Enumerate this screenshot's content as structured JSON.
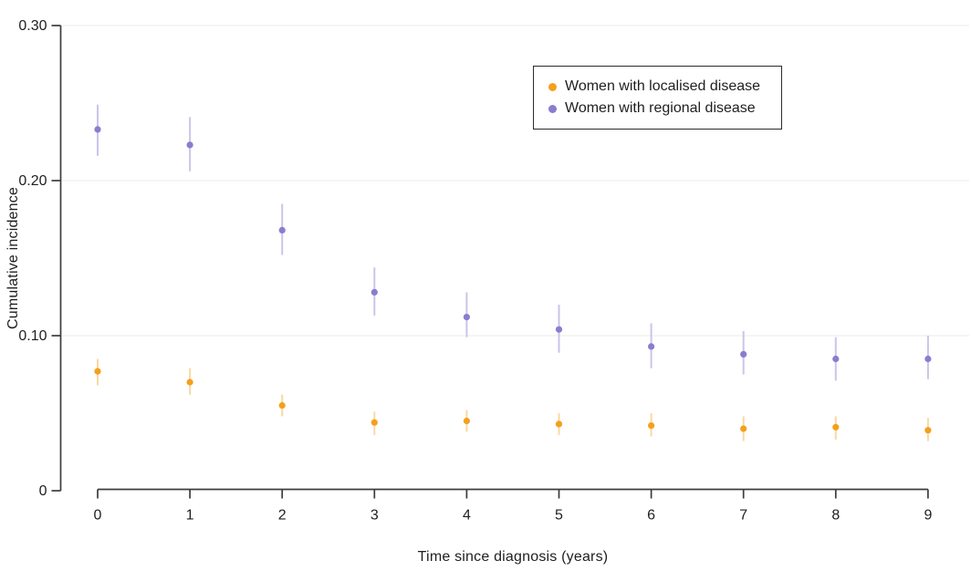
{
  "chart_data": {
    "type": "scatter",
    "title": "",
    "xlabel": "Time since diagnosis (years)",
    "ylabel": "Cumulative incidence",
    "x": [
      0,
      1,
      2,
      3,
      4,
      5,
      6,
      7,
      8,
      9
    ],
    "xtick_labels": [
      "0",
      "1",
      "2",
      "3",
      "4",
      "5",
      "6",
      "7",
      "8",
      "9"
    ],
    "yticks": [
      0,
      0.1,
      0.2,
      0.3
    ],
    "ytick_labels": [
      "0",
      "0.10",
      "0.20",
      "0.30"
    ],
    "ylim": [
      0,
      0.3
    ],
    "grid": "faint horizontal gridlines at yticks",
    "legend_position": "upper right",
    "error_bars": "vertical confidence intervals, no caps",
    "series": [
      {
        "name": "Women with localised disease",
        "color": "#F4A01D",
        "errorbar_color": "#FAD8A0",
        "values": [
          0.077,
          0.07,
          0.055,
          0.044,
          0.045,
          0.043,
          0.042,
          0.04,
          0.041,
          0.039
        ],
        "ci_low": [
          0.068,
          0.062,
          0.048,
          0.036,
          0.038,
          0.036,
          0.035,
          0.032,
          0.033,
          0.032
        ],
        "ci_high": [
          0.085,
          0.079,
          0.062,
          0.051,
          0.052,
          0.05,
          0.05,
          0.048,
          0.048,
          0.047
        ]
      },
      {
        "name": "Women with regional disease",
        "color": "#8C7CCE",
        "errorbar_color": "#CDC3EB",
        "values": [
          0.233,
          0.223,
          0.168,
          0.128,
          0.112,
          0.104,
          0.093,
          0.088,
          0.085,
          0.085
        ],
        "ci_low": [
          0.216,
          0.206,
          0.152,
          0.113,
          0.099,
          0.089,
          0.079,
          0.075,
          0.071,
          0.072
        ],
        "ci_high": [
          0.249,
          0.241,
          0.185,
          0.144,
          0.128,
          0.12,
          0.108,
          0.103,
          0.099,
          0.1
        ]
      }
    ],
    "style_colors": {
      "axis_line": "#3c3c3c",
      "tick_text": "#1f1f1f",
      "gridline": "#f4f2ee"
    }
  }
}
